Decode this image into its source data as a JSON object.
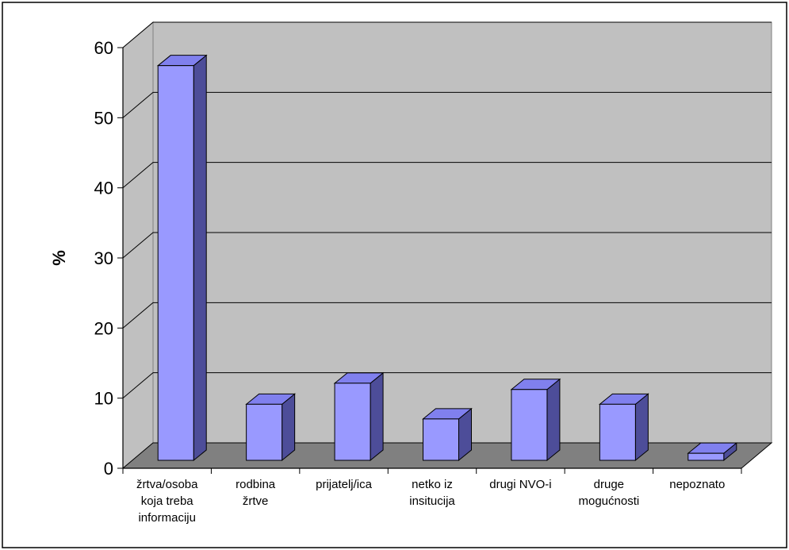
{
  "chart_data": {
    "type": "bar",
    "title": "",
    "xlabel": "",
    "ylabel": "%",
    "ylim": [
      0,
      60
    ],
    "yticks": [
      0,
      10,
      20,
      30,
      40,
      50,
      60
    ],
    "categories": [
      [
        "žrtva/osoba",
        "koja treba",
        "informaciju"
      ],
      [
        "rodbina",
        "žrtve"
      ],
      [
        "prijatelj/ica"
      ],
      [
        "netko iz",
        "insitucija"
      ],
      [
        "drugi NVO-i"
      ],
      [
        "druge",
        "mogućnosti"
      ],
      [
        "nepoznato"
      ]
    ],
    "values": [
      56.3,
      8.0,
      11.0,
      5.9,
      10.1,
      8.0,
      1.0
    ],
    "grid": true,
    "legend": "none",
    "colors": {
      "bar_front": "#9999ff",
      "bar_top": "#8080ee",
      "bar_side": "#4d4d99",
      "wall": "#c0c0c0",
      "floor": "#808080",
      "grid": "#000000"
    }
  }
}
